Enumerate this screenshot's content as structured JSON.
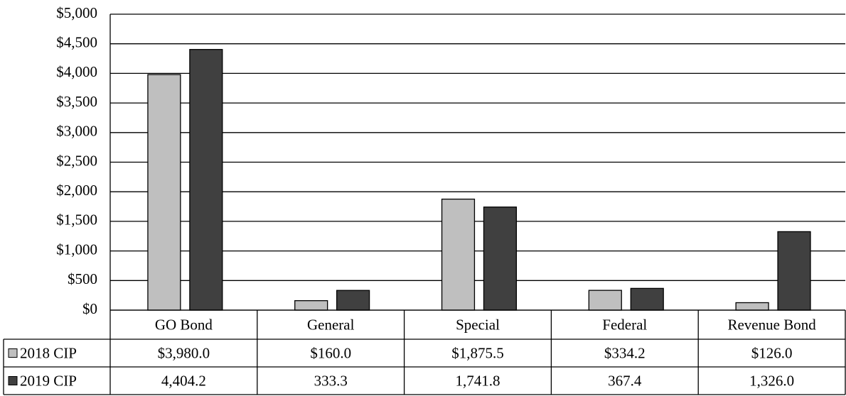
{
  "chart_data": {
    "type": "bar",
    "categories": [
      "GO Bond",
      "General",
      "Special",
      "Federal",
      "Revenue Bond"
    ],
    "series": [
      {
        "name": "2018 CIP",
        "color": "#bfbfbf",
        "values": [
          3980.0,
          160.0,
          1875.5,
          334.2,
          126.0
        ],
        "value_labels": [
          "$3,980.0",
          "$160.0",
          "$1,875.5",
          "$334.2",
          "$126.0"
        ]
      },
      {
        "name": "2019 CIP",
        "color": "#404040",
        "values": [
          4404.2,
          333.3,
          1741.8,
          367.4,
          1326.0
        ],
        "value_labels": [
          "4,404.2",
          "333.3",
          "1,741.8",
          "367.4",
          "1,326.0"
        ]
      }
    ],
    "ylim": [
      0,
      5000
    ],
    "yticks": [
      {
        "value": 0,
        "label": "$0"
      },
      {
        "value": 500,
        "label": "$500"
      },
      {
        "value": 1000,
        "label": "$1,000"
      },
      {
        "value": 1500,
        "label": "$1,500"
      },
      {
        "value": 2000,
        "label": "$2,000"
      },
      {
        "value": 2500,
        "label": "$2,500"
      },
      {
        "value": 3000,
        "label": "$3,000"
      },
      {
        "value": 3500,
        "label": "$3,500"
      },
      {
        "value": 4000,
        "label": "$4,000"
      },
      {
        "value": 4500,
        "label": "$4,500"
      },
      {
        "value": 5000,
        "label": "$5,000"
      }
    ],
    "grid": true
  }
}
